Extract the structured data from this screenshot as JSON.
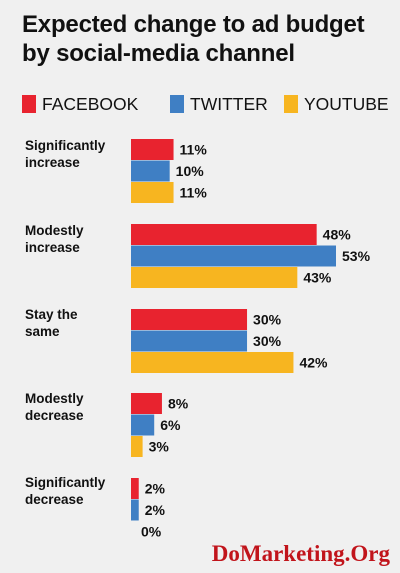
{
  "title_line1": "Expected change to ad budget",
  "title_line2": "by social-media channel",
  "watermark": "DoMarketing.Org",
  "colors": {
    "facebook": "#e8232f",
    "twitter": "#3f7fc4",
    "youtube": "#f7b520"
  },
  "chart_data": {
    "type": "bar",
    "orientation": "horizontal",
    "title": "Expected change to ad budget by social-media channel",
    "legend_position": "top",
    "categories": [
      [
        "Significantly",
        "increase"
      ],
      [
        "Modestly",
        "increase"
      ],
      [
        "Stay the",
        "same"
      ],
      [
        "Modestly",
        "decrease"
      ],
      [
        "Significantly",
        "decrease"
      ]
    ],
    "series": [
      {
        "name": "FACEBOOK",
        "color": "#e8232f",
        "values": [
          11,
          48,
          30,
          8,
          2
        ]
      },
      {
        "name": "TWITTER",
        "color": "#3f7fc4",
        "values": [
          10,
          53,
          30,
          6,
          2
        ]
      },
      {
        "name": "YOUTUBE",
        "color": "#f7b520",
        "values": [
          11,
          43,
          42,
          3,
          0
        ]
      }
    ],
    "value_suffix": "%",
    "grid": false
  }
}
